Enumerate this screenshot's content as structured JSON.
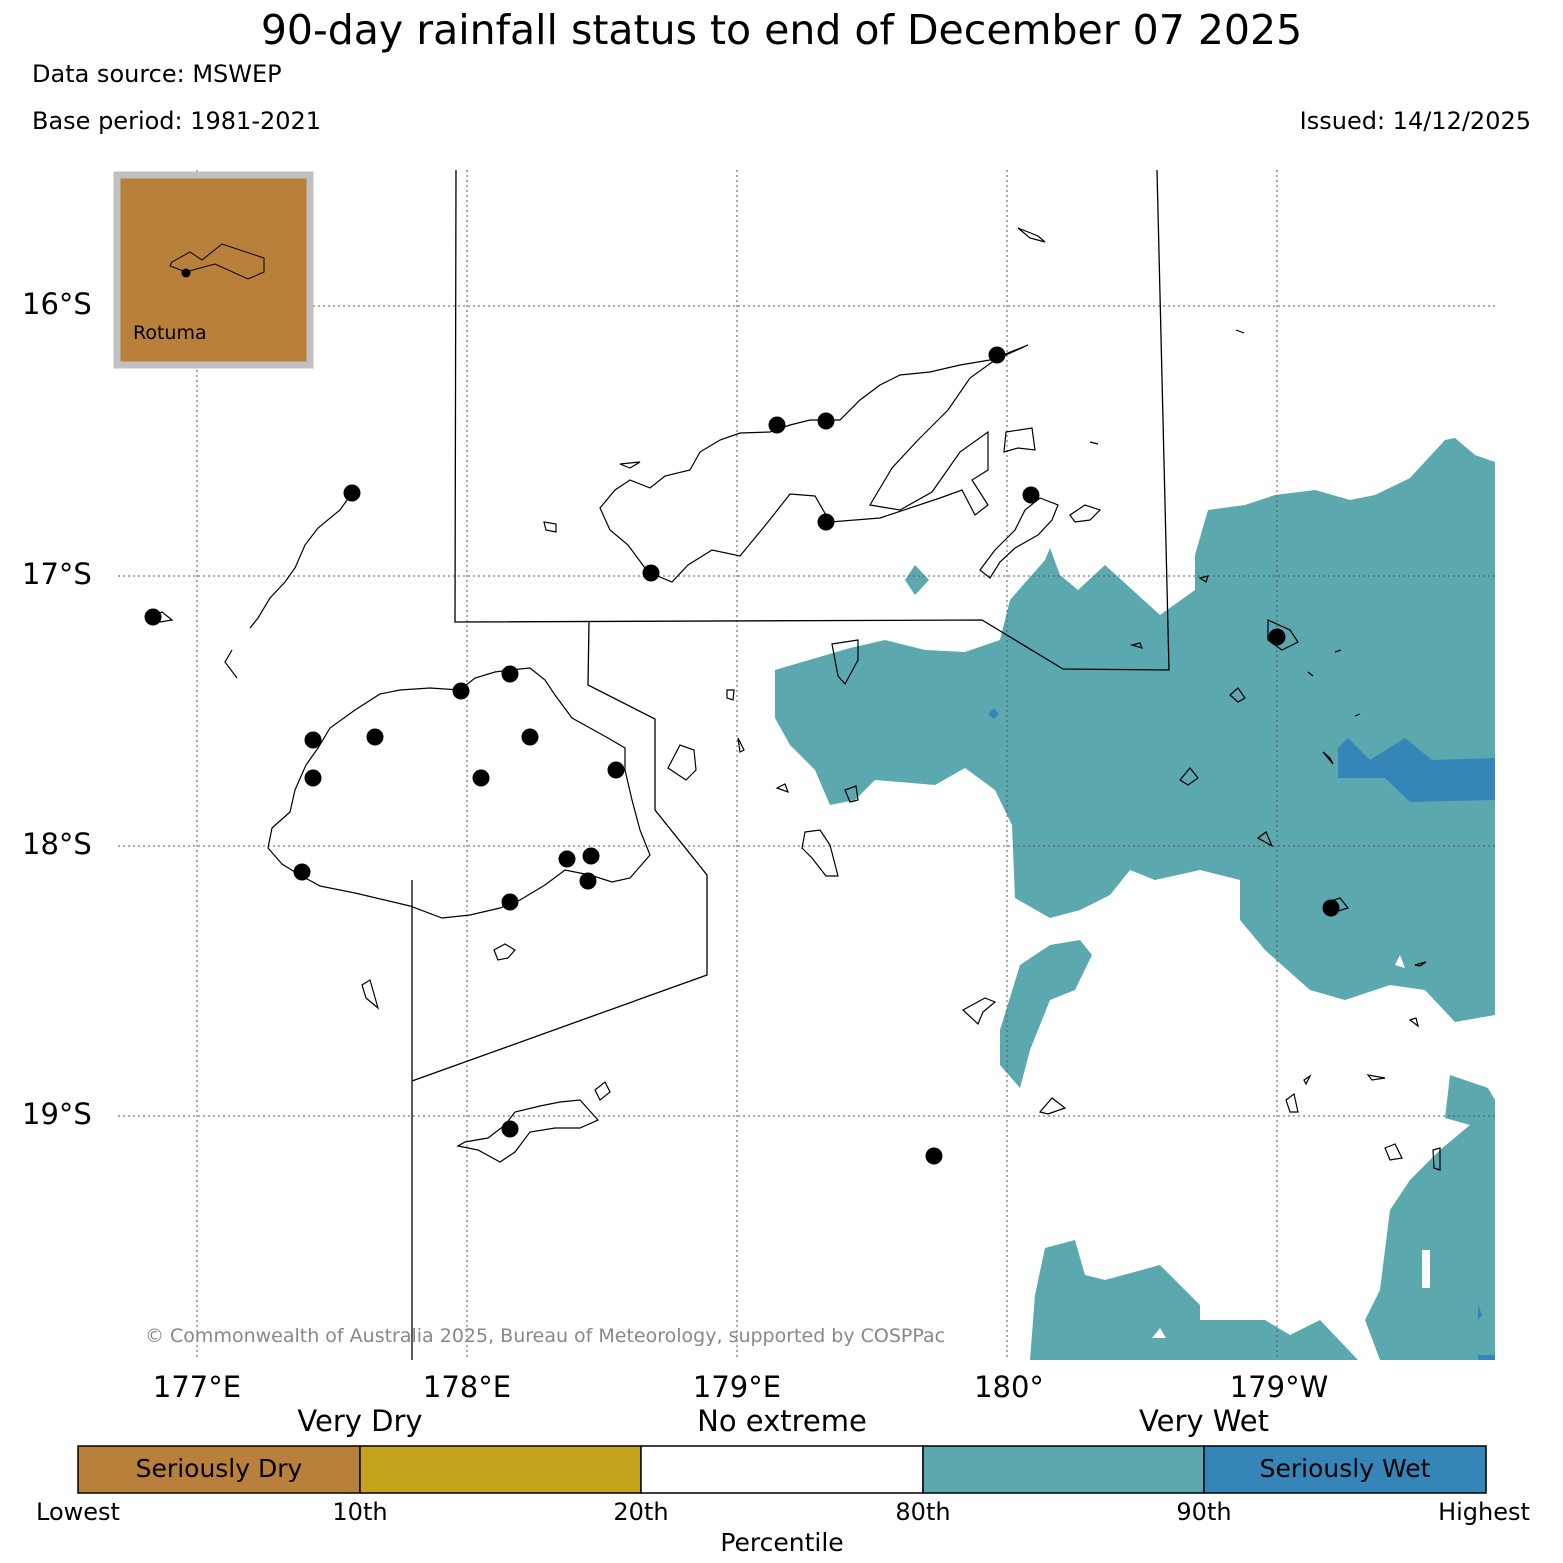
{
  "title": "90-day rainfall status to end of December 07 2025",
  "data_source": "Data source: MSWEP",
  "base_period": "Base period: 1981-2021",
  "issued": "Issued: 14/12/2025",
  "latitude_labels": [
    "16°S",
    "17°S",
    "18°S",
    "19°S"
  ],
  "longitude_labels": [
    "177°E",
    "178°E",
    "179°E",
    "180°",
    "179°W"
  ],
  "gridlines": "dotted",
  "inset": {
    "label": "Rotuma",
    "status": "Seriously Dry"
  },
  "copyright": "© Commonwealth of Australia 2025, Bureau of Meteorology, supported by COSPPac",
  "legend": {
    "group_labels": [
      "Very Dry",
      "No extreme",
      "Very Wet"
    ],
    "classes": [
      {
        "label": "Seriously Dry",
        "color": "#b8803a"
      },
      {
        "label": "",
        "color": "#c4a31d"
      },
      {
        "label": "",
        "color": "#ffffff"
      },
      {
        "label": "",
        "color": "#5ba8ae"
      },
      {
        "label": "Seriously Wet",
        "color": "#3585b8"
      }
    ],
    "tick_labels": [
      "Lowest",
      "10th",
      "20th",
      "80th",
      "90th",
      "Highest"
    ],
    "axis_label": "Percentile"
  },
  "colors": {
    "very_wet": "#5ba8ae",
    "seriously_wet": "#3585b8",
    "seriously_dry": "#b8803a",
    "station": "#000000",
    "inset_frame": "#c0c0c0"
  }
}
